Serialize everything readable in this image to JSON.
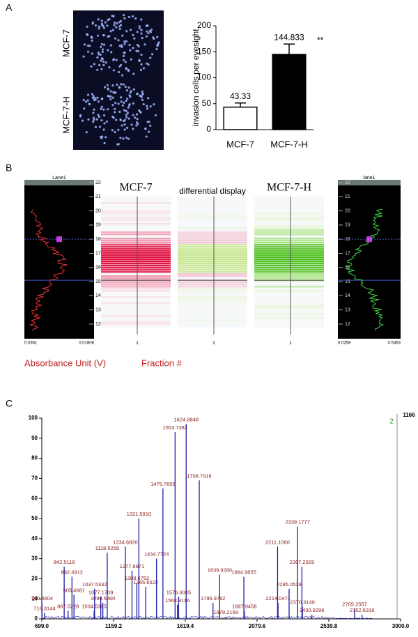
{
  "panel_labels": [
    "A",
    "B",
    "C"
  ],
  "panel_a_images": {
    "labels": [
      "MCF-7",
      "MCF-7-H"
    ]
  },
  "chart_data": [
    {
      "type": "bar",
      "y_label": "invasion cells per eyesight",
      "categories": [
        "MCF-7",
        "MCF-7-H"
      ],
      "values": [
        43.33,
        144.833
      ],
      "errors": [
        8,
        20
      ],
      "colors": [
        "#ffffff",
        "#000000"
      ],
      "annotation": "**",
      "ylim": [
        0,
        200
      ],
      "yticks": [
        0,
        50,
        100,
        150,
        200
      ]
    },
    {
      "type": "spectrum",
      "x": [
        700.4604,
        716.3144,
        842.5118,
        867.5228,
        892.4912,
        905.4681,
        1034.5365,
        1037.5332,
        1077.1709,
        1090.536,
        1118.5258,
        1234.682,
        1277.6871,
        1308.6752,
        1321.591,
        1365.6522,
        1434.7724,
        1475.7655,
        1553.7382,
        1568.9116,
        1576.6005,
        1624.8848,
        1708.7916,
        1796.9782,
        1839.928,
        1879.2159,
        1994.9855,
        1997.9458,
        2211.106,
        2214.0471,
        2285.0539,
        2339.1777,
        2367.2928,
        2370.314,
        2430.9296,
        2705.2557,
        2752.6316
      ],
      "x_labels": [
        "700.4604",
        "716.3144",
        "842.5118",
        "867.5228",
        "892.4912",
        "905.4681",
        "1034.5365",
        "1037.5332",
        "1077.1709",
        "1090.5360",
        "1118.5258",
        "1234.6820",
        "1277.6871",
        "1308.6752",
        "1321.5910",
        "1365.6522",
        "1434.7724",
        "1475.7655",
        "1553.7382",
        "1568.9116",
        "1576.6005",
        "1624.8848",
        "1708.7916",
        "1796.9782",
        "1839.9280",
        "1879.2159",
        "1994.9855",
        "1997.9458",
        "2211.1060",
        "2214.0471",
        "2285.0539",
        "2339.1777",
        "2367.2928",
        "2370.3140",
        "2430.9296",
        "2705.2557",
        "2752.6316"
      ],
      "values": [
        8,
        3,
        26,
        4,
        21,
        12,
        4,
        15,
        11,
        8,
        33,
        36,
        24,
        18,
        50,
        16,
        30,
        65,
        93,
        7,
        11,
        97,
        69,
        8,
        22,
        1,
        21,
        4,
        36,
        8,
        15,
        46,
        26,
        6,
        2,
        5,
        2
      ],
      "color": "#1c1ca8",
      "label_color": "#8b1a1a",
      "corner_texts": [
        "1166",
        "2"
      ],
      "xlim": [
        699,
        3000
      ],
      "xticks": [
        {
          "value": 699,
          "label": "699.0"
        },
        {
          "value": 1159.2,
          "label": "1159.2"
        },
        {
          "value": 1619.4,
          "label": "1619.4"
        },
        {
          "value": 2079.6,
          "label": "2079.6"
        },
        {
          "value": 2539.8,
          "label": "2539.8"
        },
        {
          "value": 3000,
          "label": "3000.0"
        }
      ],
      "ylim": [
        0,
        100
      ],
      "yticks": [
        0,
        10,
        20,
        30,
        40,
        50,
        60,
        70,
        80,
        90,
        100
      ]
    }
  ],
  "panel_b": {
    "left_title": "Lane1",
    "right_title": "lane1",
    "lane_titles": [
      "MCF-7",
      "differential display",
      "MCF-7-H"
    ],
    "lane_fractions": [
      "1",
      "1",
      "1"
    ],
    "ticks": [
      "12",
      "13",
      "14",
      "15",
      "16",
      "17",
      "18",
      "19",
      "20",
      "21",
      "22"
    ],
    "left_range": [
      "0.5361",
      "0.01808"
    ],
    "right_range": [
      "0.0258",
      "0.5463"
    ],
    "footer": [
      "Absorbance Unit (V)",
      "Fraction #"
    ]
  }
}
